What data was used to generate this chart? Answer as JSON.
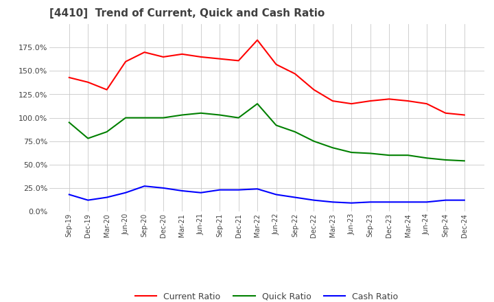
{
  "title": "[4410]  Trend of Current, Quick and Cash Ratio",
  "title_color": "#404040",
  "background_color": "#ffffff",
  "plot_bg_color": "#ffffff",
  "grid_color": "#c8c8c8",
  "ylim": [
    0,
    200
  ],
  "yticks": [
    0,
    25,
    50,
    75,
    100,
    125,
    150,
    175
  ],
  "x_labels": [
    "Sep-19",
    "Dec-19",
    "Mar-20",
    "Jun-20",
    "Sep-20",
    "Dec-20",
    "Mar-21",
    "Jun-21",
    "Sep-21",
    "Dec-21",
    "Mar-22",
    "Jun-22",
    "Sep-22",
    "Dec-22",
    "Mar-23",
    "Jun-23",
    "Sep-23",
    "Dec-23",
    "Mar-24",
    "Jun-24",
    "Sep-24",
    "Dec-24"
  ],
  "current_ratio": [
    143,
    138,
    130,
    160,
    170,
    165,
    168,
    165,
    163,
    161,
    183,
    157,
    147,
    130,
    118,
    115,
    118,
    120,
    118,
    115,
    105,
    103
  ],
  "quick_ratio": [
    95,
    78,
    85,
    100,
    100,
    100,
    103,
    105,
    103,
    100,
    115,
    92,
    85,
    75,
    68,
    63,
    62,
    60,
    60,
    57,
    55,
    54
  ],
  "cash_ratio": [
    18,
    12,
    15,
    20,
    27,
    25,
    22,
    20,
    23,
    23,
    24,
    18,
    15,
    12,
    10,
    9,
    10,
    10,
    10,
    10,
    12,
    12
  ],
  "current_color": "#ff0000",
  "quick_color": "#008000",
  "cash_color": "#0000ff",
  "line_width": 1.5,
  "legend_labels": [
    "Current Ratio",
    "Quick Ratio",
    "Cash Ratio"
  ]
}
